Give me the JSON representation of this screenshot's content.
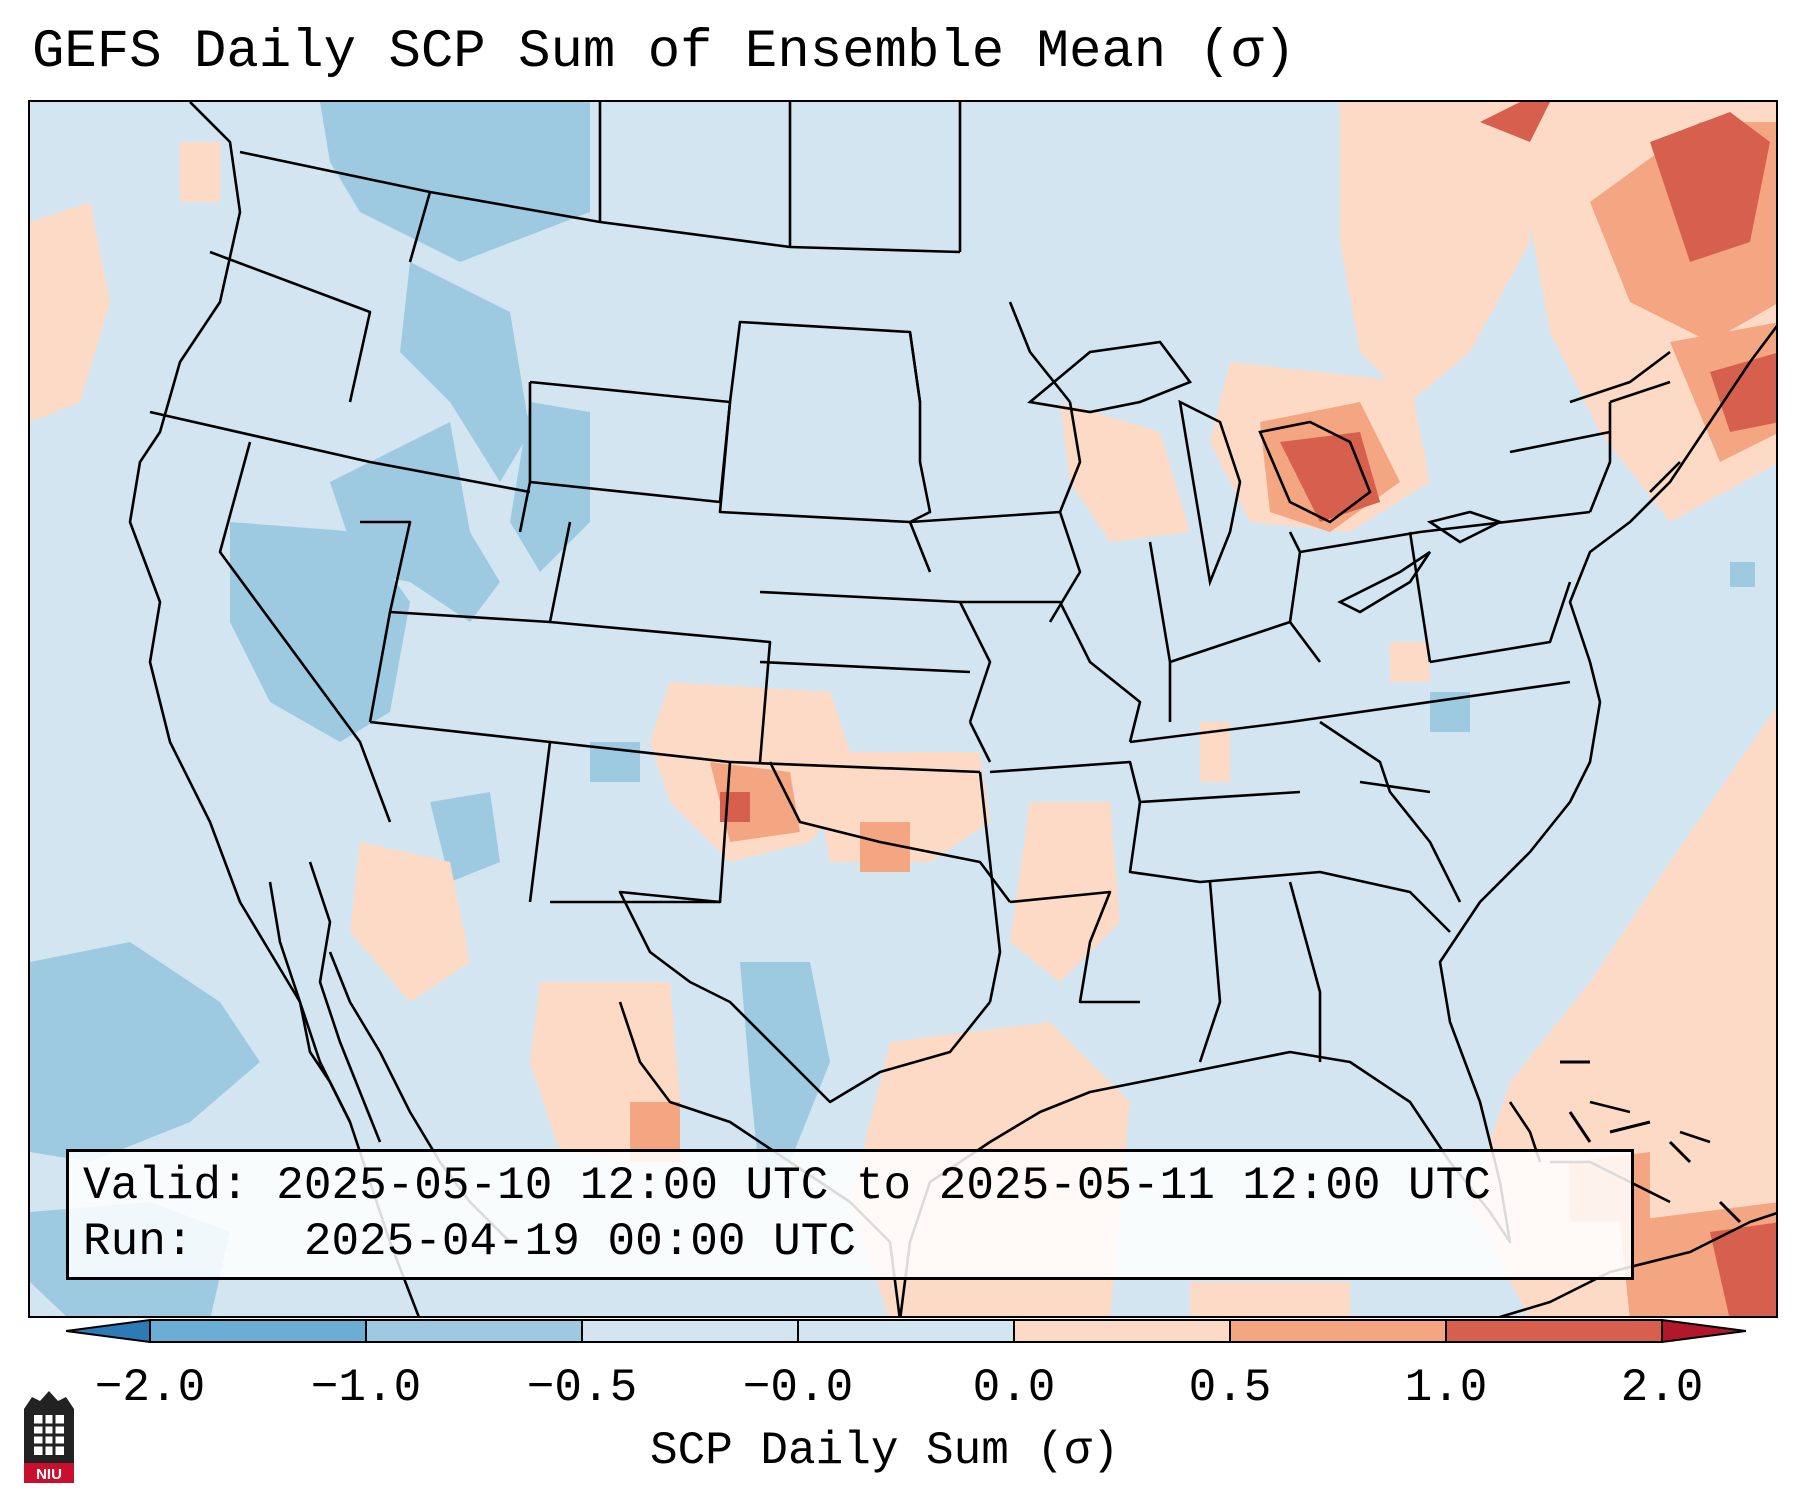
{
  "title": "GEFS Daily SCP Sum of Ensemble Mean (σ)",
  "info": {
    "valid_label": "Valid:",
    "valid_value": "2025-05-10 12:00 UTC to 2025-05-11 12:00 UTC",
    "run_label": "Run:",
    "run_value": "2025-04-19 00:00 UTC"
  },
  "colorbar": {
    "label": "SCP Daily Sum (σ)",
    "ticks": [
      "−2.0",
      "−1.0",
      "−0.5",
      "−0.0",
      "0.0",
      "0.5",
      "1.0",
      "2.0"
    ],
    "colors": [
      "#2c7bb6",
      "#6aaed6",
      "#9ecae1",
      "#d2e5f1",
      "#fcdac5",
      "#f4a582",
      "#d6604d",
      "#b2182b"
    ]
  },
  "map": {
    "background_color": "#d2e5f1",
    "positive_anomaly_color": "#fcdac5",
    "strong_positive_color": "#e9846d",
    "negative_anomaly_color": "#9ecae1"
  },
  "logo": {
    "text": "NIU"
  }
}
